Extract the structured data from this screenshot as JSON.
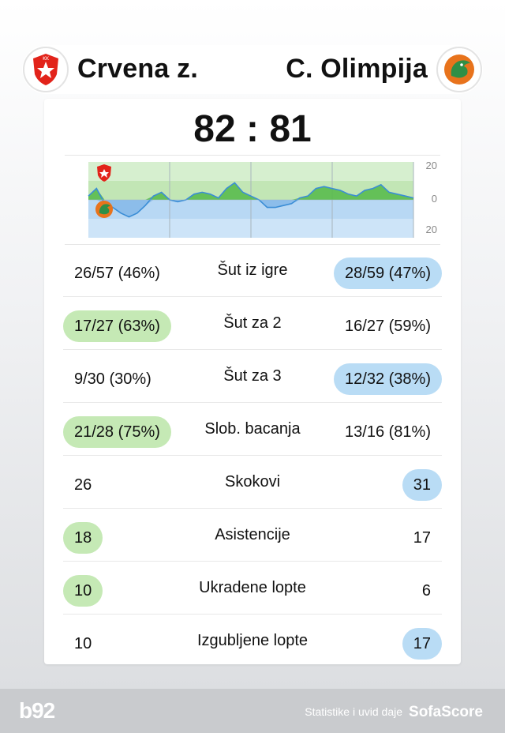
{
  "home_team": {
    "name": "Crvena z.",
    "logo_icon": "crvena-zvezda-star-crest",
    "color": "#c5e9b5"
  },
  "away_team": {
    "name": "C. Olimpija",
    "logo_icon": "olimpija-dragon-crest",
    "color": "#b9dcf5"
  },
  "score": "82 : 81",
  "chart_data": {
    "type": "area",
    "x": [
      0,
      1,
      2,
      3,
      4,
      5,
      6,
      7,
      8,
      9,
      10,
      11,
      12,
      13,
      14,
      15,
      16,
      17,
      18,
      19,
      20,
      21,
      22,
      23,
      24,
      25,
      26,
      27,
      28,
      29,
      30,
      31,
      32,
      33,
      34,
      35,
      36,
      37,
      38,
      39,
      40
    ],
    "y": [
      2,
      6,
      -2,
      -4,
      -7,
      -9,
      -7,
      -3,
      2,
      4,
      0,
      -1,
      0,
      3,
      4,
      3,
      1,
      6,
      9,
      4,
      2,
      0,
      -4,
      -4,
      -3,
      -2,
      1,
      2,
      6,
      7,
      6,
      5,
      3,
      2,
      5,
      6,
      8,
      4,
      3,
      2,
      1
    ],
    "ylim": [
      -20,
      20
    ],
    "tick_labels": [
      "20",
      "0",
      "20"
    ],
    "quarters": 4,
    "home_color": "#53b848",
    "away_color": "#3a8dd6"
  },
  "stats": [
    {
      "label": "Šut iz igre",
      "home": "26/57 (46%)",
      "away": "28/59 (47%)",
      "leader": "away"
    },
    {
      "label": "Šut za 2",
      "home": "17/27 (63%)",
      "away": "16/27 (59%)",
      "leader": "home"
    },
    {
      "label": "Šut za 3",
      "home": "9/30 (30%)",
      "away": "12/32 (38%)",
      "leader": "away"
    },
    {
      "label": "Slob. bacanja",
      "home": "21/28 (75%)",
      "away": "13/16 (81%)",
      "leader": "home"
    },
    {
      "label": "Skokovi",
      "home": "26",
      "away": "31",
      "leader": "away"
    },
    {
      "label": "Asistencije",
      "home": "18",
      "away": "17",
      "leader": "home"
    },
    {
      "label": "Ukradene lopte",
      "home": "10",
      "away": "6",
      "leader": "home"
    },
    {
      "label": "Izgubljene lopte",
      "home": "10",
      "away": "17",
      "leader": "away"
    }
  ],
  "footer": {
    "brand_left": "b92",
    "credit_text": "Statistike i uvid daje",
    "credit_brand": "SofaScore"
  }
}
